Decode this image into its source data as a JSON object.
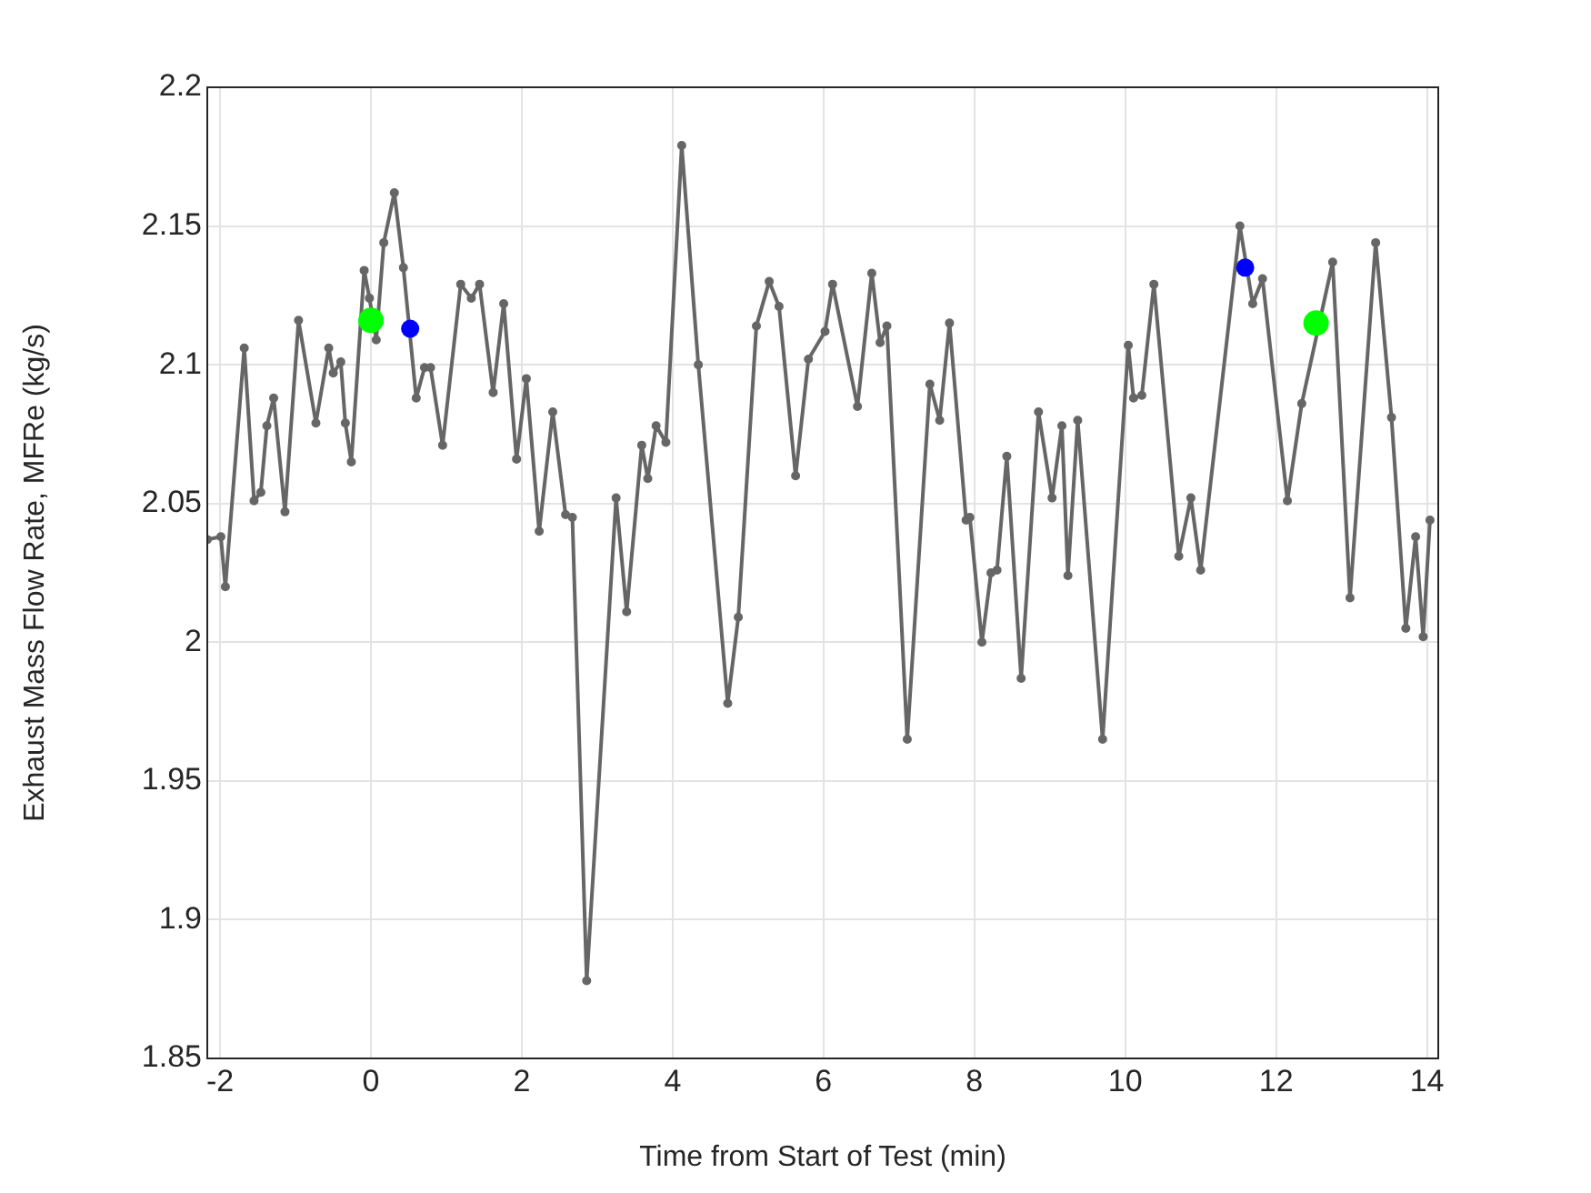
{
  "chart_data": {
    "type": "line",
    "xlabel": "Time from Start of Test (min)",
    "ylabel": "Exhaust Mass Flow Rate, MFRe (kg/s)",
    "xlim": [
      -2.17,
      14.15
    ],
    "xticks": [
      -2,
      0,
      2,
      4,
      6,
      8,
      10,
      12,
      14
    ],
    "ylim": [
      1.85,
      2.2
    ],
    "yticks": [
      1.85,
      1.9,
      1.95,
      2,
      2.05,
      2.1,
      2.15,
      2.2
    ],
    "grid": true,
    "legend": false,
    "marker": "circle",
    "line_style": "solid",
    "series": [
      {
        "color": "#666666",
        "x": [
          -2.17,
          -1.99,
          -1.93,
          -1.68,
          -1.55,
          -1.46,
          -1.38,
          -1.29,
          -1.14,
          -0.96,
          -0.73,
          -0.56,
          -0.5,
          -0.4,
          -0.34,
          -0.26,
          -0.09,
          -0.02,
          0.07,
          0.17,
          0.31,
          0.43,
          0.6,
          0.71,
          0.79,
          0.95,
          1.19,
          1.33,
          1.44,
          1.62,
          1.76,
          1.93,
          2.06,
          2.23,
          2.41,
          2.58,
          2.67,
          2.86,
          3.25,
          3.39,
          3.59,
          3.67,
          3.78,
          3.91,
          4.12,
          4.34,
          4.73,
          4.87,
          5.11,
          5.28,
          5.41,
          5.63,
          5.8,
          6.02,
          6.12,
          6.45,
          6.64,
          6.75,
          6.84,
          7.11,
          7.41,
          7.54,
          7.67,
          7.89,
          7.94,
          8.1,
          8.22,
          8.3,
          8.43,
          8.62,
          8.85,
          9.03,
          9.16,
          9.24,
          9.37,
          9.7,
          10.04,
          10.11,
          10.22,
          10.38,
          10.71,
          10.87,
          11.0,
          11.52,
          11.69,
          11.82,
          12.15,
          12.34,
          12.75,
          12.98,
          13.32,
          13.53,
          13.72,
          13.85,
          13.95,
          14.04
        ],
        "values": [
          2.037,
          2.038,
          2.02,
          2.106,
          2.051,
          2.054,
          2.078,
          2.088,
          2.047,
          2.116,
          2.079,
          2.106,
          2.097,
          2.101,
          2.079,
          2.065,
          2.134,
          2.124,
          2.109,
          2.144,
          2.162,
          2.135,
          2.088,
          2.099,
          2.099,
          2.071,
          2.129,
          2.124,
          2.129,
          2.09,
          2.122,
          2.066,
          2.095,
          2.04,
          2.083,
          2.046,
          2.045,
          1.878,
          2.052,
          2.011,
          2.071,
          2.059,
          2.078,
          2.072,
          2.179,
          2.1,
          1.978,
          2.009,
          2.114,
          2.13,
          2.121,
          2.06,
          2.102,
          2.112,
          2.129,
          2.085,
          2.133,
          2.108,
          2.114,
          1.965,
          2.093,
          2.08,
          2.115,
          2.044,
          2.045,
          2.0,
          2.025,
          2.026,
          2.067,
          1.987,
          2.083,
          2.052,
          2.078,
          2.024,
          2.08,
          1.965,
          2.107,
          2.088,
          2.089,
          2.129,
          2.031,
          2.052,
          2.026,
          2.15,
          2.122,
          2.131,
          2.051,
          2.086,
          2.137,
          2.016,
          2.144,
          2.081,
          2.005,
          2.038,
          2.002,
          2.044
        ]
      },
      {
        "type": "scatter",
        "color": "#00ff00",
        "x": [
          0.0,
          12.53
        ],
        "values": [
          2.116,
          2.115
        ]
      },
      {
        "type": "scatter",
        "color": "#0000ff",
        "x": [
          0.52,
          11.59
        ],
        "values": [
          2.113,
          2.135
        ]
      }
    ]
  }
}
